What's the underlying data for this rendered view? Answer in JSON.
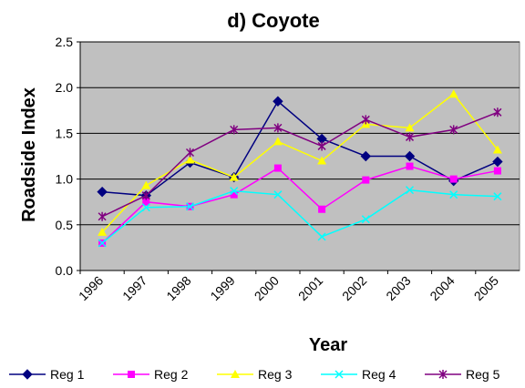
{
  "chart_data": {
    "type": "line",
    "title": "d) Coyote",
    "xlabel": "Year",
    "ylabel": "Roadside Index",
    "categories": [
      "1996",
      "1997",
      "1998",
      "1999",
      "2000",
      "2001",
      "2002",
      "2003",
      "2004",
      "2005"
    ],
    "series": [
      {
        "name": "Reg 1",
        "color": "#000080",
        "marker": "diamond",
        "values": [
          0.86,
          0.82,
          1.18,
          1.02,
          1.85,
          1.44,
          1.25,
          1.25,
          0.98,
          1.19
        ]
      },
      {
        "name": "Reg 2",
        "color": "#ff00ff",
        "marker": "square",
        "values": [
          0.3,
          0.75,
          0.7,
          0.83,
          1.12,
          0.67,
          0.99,
          1.14,
          1.0,
          1.09
        ]
      },
      {
        "name": "Reg 3",
        "color": "#ffff00",
        "marker": "triangle",
        "values": [
          0.42,
          0.93,
          1.21,
          1.02,
          1.41,
          1.2,
          1.6,
          1.56,
          1.93,
          1.32
        ]
      },
      {
        "name": "Reg 4",
        "color": "#00ffff",
        "marker": "x",
        "values": [
          0.3,
          0.69,
          0.7,
          0.87,
          0.83,
          0.37,
          0.56,
          0.88,
          0.83,
          0.81
        ]
      },
      {
        "name": "Reg 5",
        "color": "#800080",
        "marker": "star",
        "values": [
          0.59,
          0.82,
          1.29,
          1.54,
          1.56,
          1.36,
          1.65,
          1.46,
          1.54,
          1.73
        ]
      }
    ],
    "ylim": [
      0,
      2.5
    ],
    "yticks": [
      {
        "value": 0,
        "label": "0.0"
      },
      0.5,
      {
        "value": 1,
        "label": "1.0"
      },
      1.5,
      {
        "value": 2,
        "label": "2.0"
      },
      2.5
    ],
    "grid": true,
    "plot_background": "#c0c0c0",
    "legend": "bottom"
  }
}
